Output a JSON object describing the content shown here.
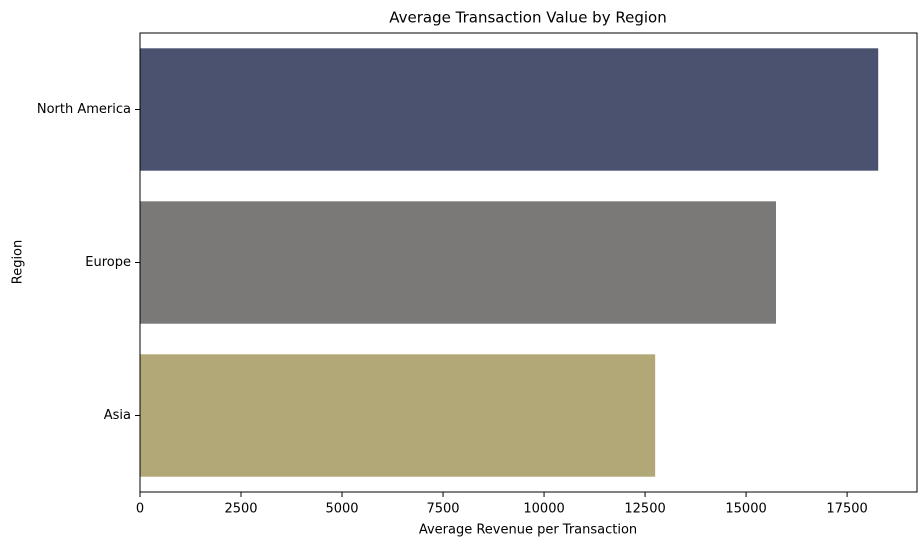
{
  "chart_data": {
    "type": "barh",
    "title": "Average Transaction Value by Region",
    "x_label": "Average Revenue per Transaction",
    "y_label": "Region",
    "categories": [
      "North America",
      "Europe",
      "Asia"
    ],
    "values": [
      18270,
      15740,
      12750
    ],
    "colors": [
      "#4a5270",
      "#7b7977",
      "#b2a777"
    ],
    "xlim": [
      0,
      19230
    ],
    "xticks": [
      0,
      2500,
      5000,
      7500,
      10000,
      12500,
      15000,
      17500
    ]
  }
}
